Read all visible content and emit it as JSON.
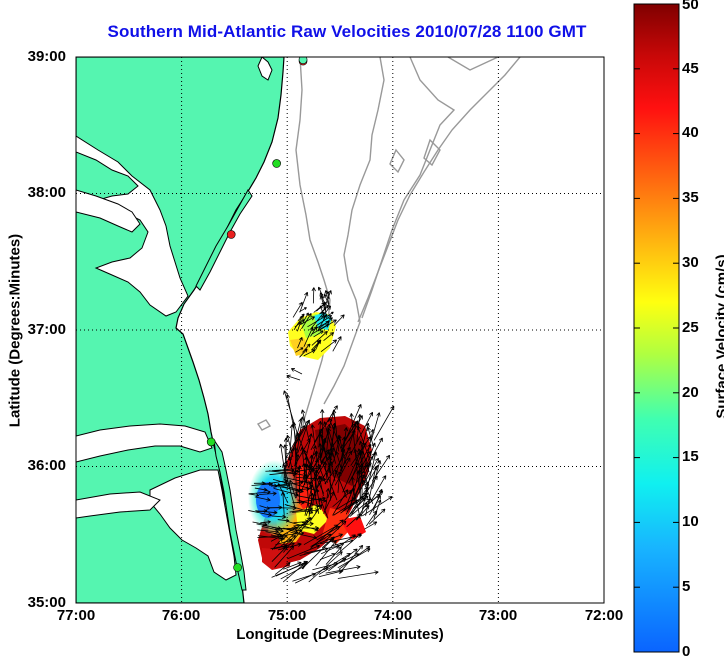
{
  "title": "Southern Mid-Atlantic Raw Velocities 2010/07/28 1100 GMT",
  "x_axis": {
    "label": "Longitude (Degrees:Minutes)",
    "ticks": [
      "77:00",
      "76:00",
      "75:00",
      "74:00",
      "73:00",
      "72:00"
    ],
    "range": [
      -77,
      -72
    ]
  },
  "y_axis": {
    "label": "Latitude (Degrees:Minutes)",
    "ticks": [
      "39:00",
      "38:00",
      "37:00",
      "36:00",
      "35:00"
    ],
    "range": [
      35,
      39
    ]
  },
  "colorbar": {
    "label": "Surface Velocity (cm/s)",
    "ticks": [
      "0",
      "5",
      "10",
      "15",
      "20",
      "25",
      "30",
      "35",
      "40",
      "45",
      "50"
    ],
    "range": [
      0,
      50
    ]
  },
  "colors": {
    "land": "#55f5b0",
    "coast": "#000000",
    "bathymetry": "#999999",
    "grid": "#000000",
    "title": "#1010e8"
  },
  "grid": "dotted",
  "stations": [
    {
      "lon": -74.85,
      "lat": 38.97,
      "color": "#e82020"
    },
    {
      "lon": -74.85,
      "lat": 38.98,
      "color": "#55f5b0"
    },
    {
      "lon": -75.1,
      "lat": 38.22,
      "color": "#22dd22"
    },
    {
      "lon": -75.53,
      "lat": 37.7,
      "color": "#e82020"
    },
    {
      "lon": -75.72,
      "lat": 36.18,
      "color": "#22dd22"
    },
    {
      "lon": -75.47,
      "lat": 35.26,
      "color": "#22dd22"
    }
  ]
}
